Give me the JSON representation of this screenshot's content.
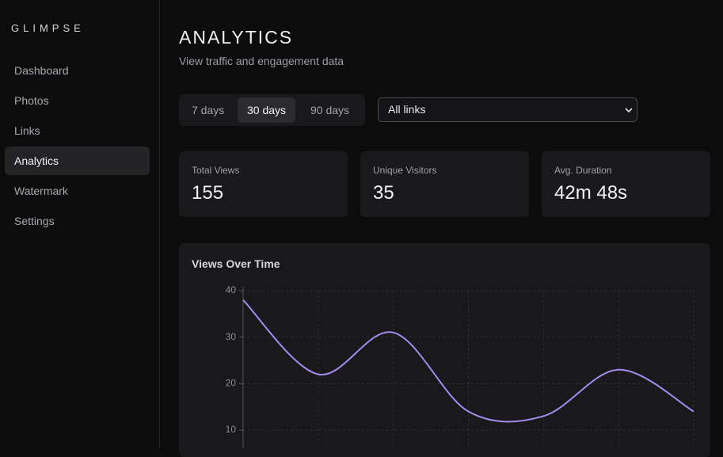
{
  "sidebar": {
    "brand": "GLIMPSE",
    "nav": [
      "Dashboard",
      "Photos",
      "Links",
      "Analytics",
      "Watermark",
      "Settings"
    ],
    "active": 3
  },
  "header": {
    "title": "ANALYTICS",
    "subtitle": "View traffic and engagement data"
  },
  "filters": {
    "ranges": [
      "7 days",
      "30 days",
      "90 days"
    ],
    "active_range": 1,
    "link_select": "All links"
  },
  "stats": [
    {
      "label": "Total Views",
      "value": 155
    },
    {
      "label": "Unique Visitors",
      "value": 35
    },
    {
      "label": "Avg. Duration",
      "value": "42m 48s"
    }
  ],
  "chart_data": {
    "type": "line",
    "title": "Views Over Time",
    "color": "#a48cf0",
    "values": [
      38,
      22,
      31,
      14,
      13,
      23,
      14
    ],
    "ylim": [
      0,
      40
    ],
    "yticks": [
      10,
      20,
      30,
      40
    ],
    "grid": true
  }
}
